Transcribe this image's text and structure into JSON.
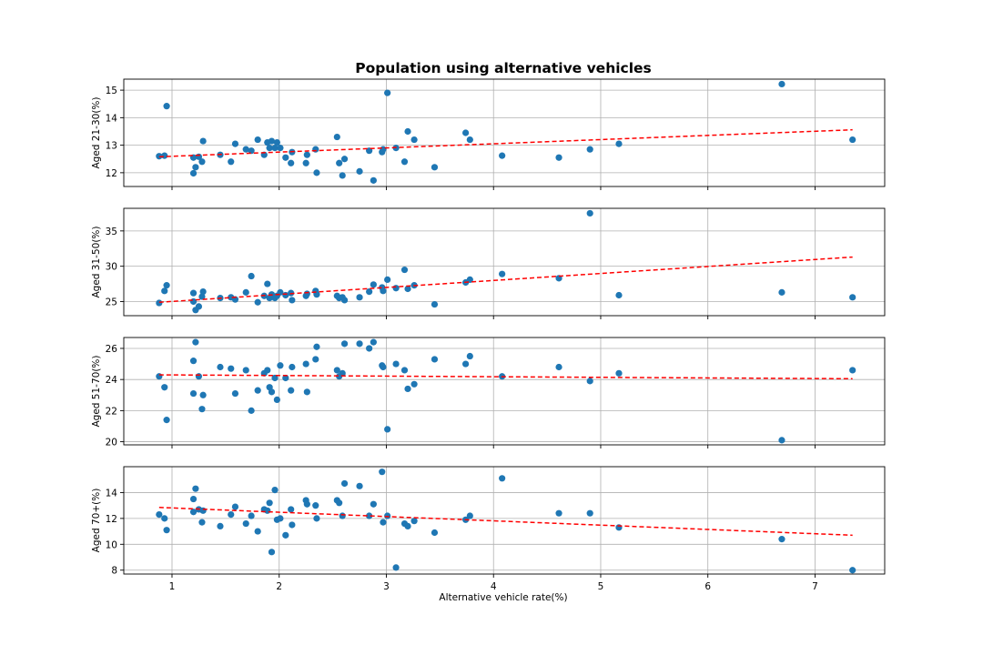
{
  "chart_data": {
    "type": "scatter",
    "title": "Population using alternative vehicles",
    "xlabel": "Alternative vehicle rate(%)",
    "x_ticks": [
      1,
      2,
      3,
      4,
      5,
      6,
      7
    ],
    "xlim": [
      0.55,
      7.65
    ],
    "grid": true,
    "point_color": "#1f77b4",
    "trend_color": "#ff0000",
    "x": [
      0.88,
      0.93,
      0.95,
      1.2,
      1.2,
      1.22,
      1.25,
      1.28,
      1.29,
      1.45,
      1.55,
      1.59,
      1.69,
      1.74,
      1.8,
      1.86,
      1.89,
      1.91,
      1.93,
      1.96,
      1.98,
      2.01,
      2.06,
      2.11,
      2.12,
      2.25,
      2.26,
      2.34,
      2.35,
      2.54,
      2.56,
      2.59,
      2.61,
      2.75,
      2.84,
      2.88,
      2.96,
      2.97,
      3.01,
      3.09,
      3.17,
      3.2,
      3.26,
      3.45,
      3.74,
      3.78,
      4.08,
      4.61,
      4.9,
      5.17,
      6.69,
      7.35
    ],
    "subplots": [
      {
        "ylabel": "Aged 21-30(%)",
        "ylim": [
          11.5,
          15.4
        ],
        "y_ticks": [
          12,
          13,
          14,
          15
        ],
        "y": [
          12.6,
          12.62,
          14.42,
          12.55,
          11.98,
          12.2,
          12.58,
          12.4,
          13.15,
          12.65,
          12.4,
          13.05,
          12.85,
          12.8,
          13.2,
          12.65,
          13.1,
          12.9,
          13.15,
          12.9,
          13.1,
          12.9,
          12.55,
          12.35,
          12.75,
          12.35,
          12.65,
          12.85,
          12.0,
          13.3,
          12.35,
          11.9,
          12.5,
          12.05,
          12.8,
          11.72,
          12.75,
          12.85,
          14.9,
          12.9,
          12.4,
          13.5,
          13.2,
          12.2,
          13.45,
          13.2,
          12.62,
          12.55,
          12.85,
          13.05,
          15.22,
          13.2
        ],
        "trend": [
          [
            0.88,
            12.58
          ],
          [
            7.35,
            13.56
          ]
        ]
      },
      {
        "ylabel": "Aged 31-50(%)",
        "ylim": [
          23.0,
          38.2
        ],
        "y_ticks": [
          25,
          30,
          35
        ],
        "y": [
          24.8,
          26.5,
          27.3,
          26.2,
          25.0,
          23.8,
          24.3,
          25.7,
          26.4,
          25.5,
          25.6,
          25.3,
          26.3,
          28.6,
          24.9,
          25.8,
          27.5,
          25.5,
          26.0,
          25.5,
          25.8,
          26.3,
          25.9,
          26.2,
          25.2,
          25.8,
          26.1,
          26.5,
          26.0,
          25.8,
          25.5,
          25.6,
          25.2,
          25.6,
          26.4,
          27.4,
          27.0,
          26.5,
          28.1,
          26.9,
          29.5,
          26.8,
          27.3,
          24.6,
          27.7,
          28.1,
          28.9,
          28.3,
          37.5,
          25.9,
          26.3,
          25.6
        ],
        "trend": [
          [
            0.88,
            24.9
          ],
          [
            7.35,
            31.3
          ]
        ]
      },
      {
        "ylabel": "Aged 51-70(%)",
        "ylim": [
          19.8,
          26.7
        ],
        "y_ticks": [
          20,
          22,
          24,
          26
        ],
        "y": [
          24.2,
          23.5,
          21.4,
          25.2,
          23.1,
          26.4,
          24.2,
          22.1,
          23.0,
          24.8,
          24.7,
          23.1,
          24.6,
          22.0,
          23.3,
          24.4,
          24.6,
          23.5,
          23.2,
          24.1,
          22.7,
          24.9,
          24.1,
          23.3,
          24.8,
          25.0,
          23.2,
          25.3,
          26.1,
          24.6,
          24.2,
          24.4,
          26.3,
          26.3,
          26.0,
          26.4,
          24.9,
          24.8,
          20.8,
          25.0,
          24.6,
          23.4,
          23.7,
          25.3,
          25.0,
          25.5,
          24.2,
          24.8,
          23.9,
          24.4,
          20.1,
          24.6
        ],
        "trend": [
          [
            0.88,
            24.3
          ],
          [
            7.35,
            24.05
          ]
        ]
      },
      {
        "ylabel": "Aged 70+(%)",
        "ylim": [
          7.7,
          16.0
        ],
        "y_ticks": [
          8,
          10,
          12,
          14
        ],
        "y": [
          12.3,
          12.0,
          11.1,
          13.5,
          12.5,
          14.3,
          12.7,
          11.7,
          12.6,
          11.4,
          12.3,
          12.9,
          11.6,
          12.2,
          11.0,
          12.7,
          12.6,
          13.2,
          9.4,
          14.2,
          11.9,
          12.0,
          10.7,
          12.7,
          11.5,
          13.4,
          13.1,
          13.0,
          12.0,
          13.4,
          13.2,
          12.2,
          14.7,
          14.5,
          12.2,
          13.1,
          15.6,
          11.7,
          12.2,
          8.2,
          11.6,
          11.4,
          11.8,
          10.9,
          11.9,
          12.2,
          15.1,
          12.4,
          12.4,
          11.3,
          10.4,
          8.0
        ],
        "trend": [
          [
            0.88,
            12.85
          ],
          [
            7.35,
            10.7
          ]
        ]
      }
    ]
  }
}
